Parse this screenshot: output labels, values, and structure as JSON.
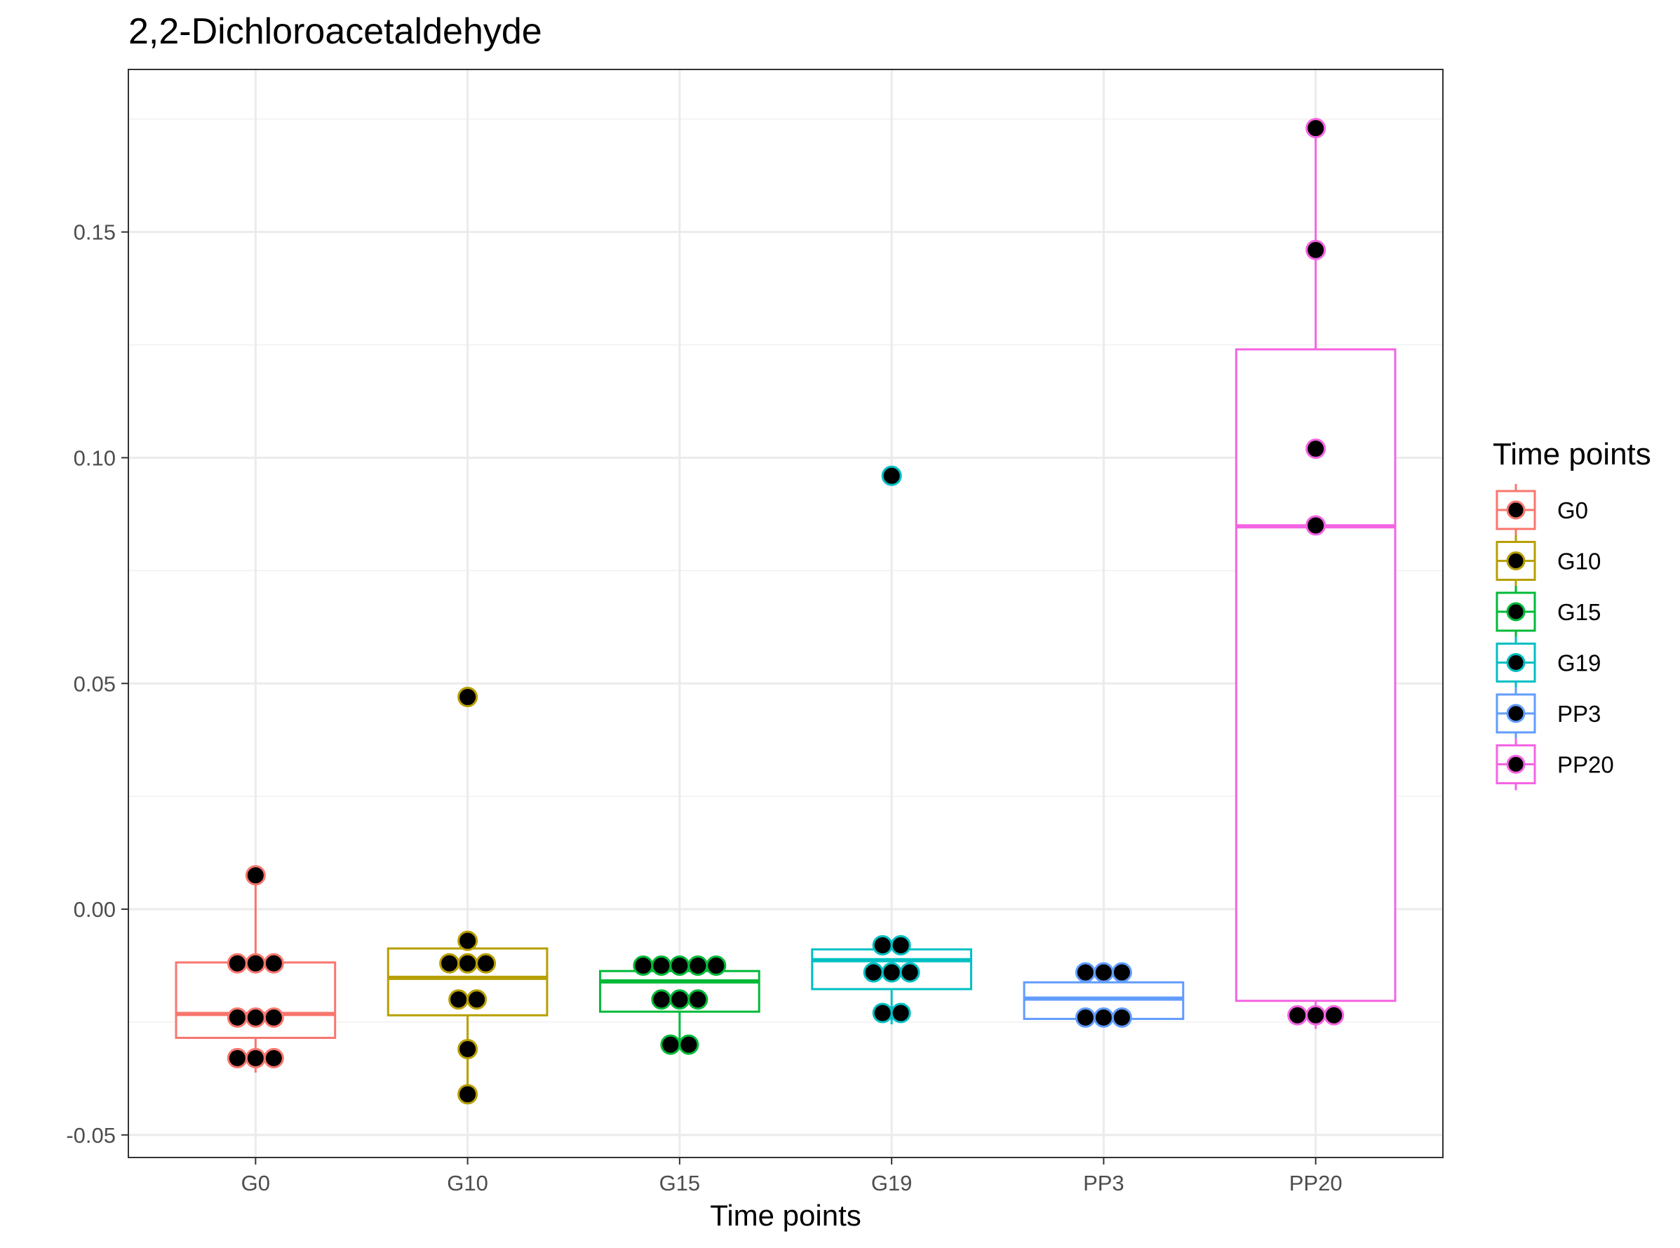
{
  "chart_data": {
    "type": "boxplot",
    "title": "2,2-Dichloroacetaldehyde",
    "xlabel": "Time points",
    "ylabel": "",
    "ylim": [
      -0.055,
      0.186
    ],
    "y_ticks": [
      -0.05,
      0.0,
      0.05,
      0.1,
      0.15
    ],
    "y_tick_labels": [
      "-0.05",
      "0.00",
      "0.05",
      "0.10",
      "0.15"
    ],
    "grid": true,
    "legend": {
      "title": "Time points",
      "placement": "right"
    },
    "categories": [
      "G0",
      "G10",
      "G15",
      "G19",
      "PP3",
      "PP20"
    ],
    "series": [
      {
        "name": "G0",
        "color": "#F8766D",
        "box": {
          "q1": -0.0285,
          "median": -0.0232,
          "q3": -0.0118,
          "whisker_low": -0.0362,
          "whisker_high": 0.0075
        },
        "points": [
          0.0075,
          -0.012,
          -0.012,
          -0.012,
          -0.024,
          -0.024,
          -0.024,
          -0.033,
          -0.033,
          -0.033
        ]
      },
      {
        "name": "G10",
        "color": "#B79F00",
        "box": {
          "q1": -0.0235,
          "median": -0.0152,
          "q3": -0.0087,
          "whisker_low": -0.0405,
          "whisker_high": -0.0068
        },
        "points": [
          0.047,
          -0.007,
          -0.012,
          -0.012,
          -0.012,
          -0.02,
          -0.02,
          -0.031,
          -0.041
        ]
      },
      {
        "name": "G15",
        "color": "#00BA38",
        "box": {
          "q1": -0.0227,
          "median": -0.016,
          "q3": -0.0137,
          "whisker_low": -0.03,
          "whisker_high": -0.0125
        },
        "points": [
          -0.0125,
          -0.0125,
          -0.0125,
          -0.0125,
          -0.0125,
          -0.02,
          -0.02,
          -0.02,
          -0.03,
          -0.03
        ]
      },
      {
        "name": "G19",
        "color": "#00BFC4",
        "box": {
          "q1": -0.0177,
          "median": -0.0113,
          "q3": -0.0089,
          "whisker_low": -0.0255,
          "whisker_high": -0.008
        },
        "points": [
          0.096,
          -0.008,
          -0.008,
          -0.014,
          -0.014,
          -0.014,
          -0.023,
          -0.023
        ]
      },
      {
        "name": "PP3",
        "color": "#619CFF",
        "box": {
          "q1": -0.0243,
          "median": -0.0198,
          "q3": -0.0162,
          "whisker_low": -0.0255,
          "whisker_high": -0.0125
        },
        "points": [
          -0.014,
          -0.014,
          -0.014,
          -0.024,
          -0.024,
          -0.024
        ]
      },
      {
        "name": "PP20",
        "color": "#F564E3",
        "box": {
          "q1": -0.0203,
          "median": 0.0848,
          "q3": 0.124,
          "whisker_low": -0.0265,
          "whisker_high": 0.173
        },
        "points": [
          0.173,
          0.146,
          0.102,
          0.085,
          -0.0235,
          -0.0235,
          -0.0235
        ]
      }
    ]
  }
}
